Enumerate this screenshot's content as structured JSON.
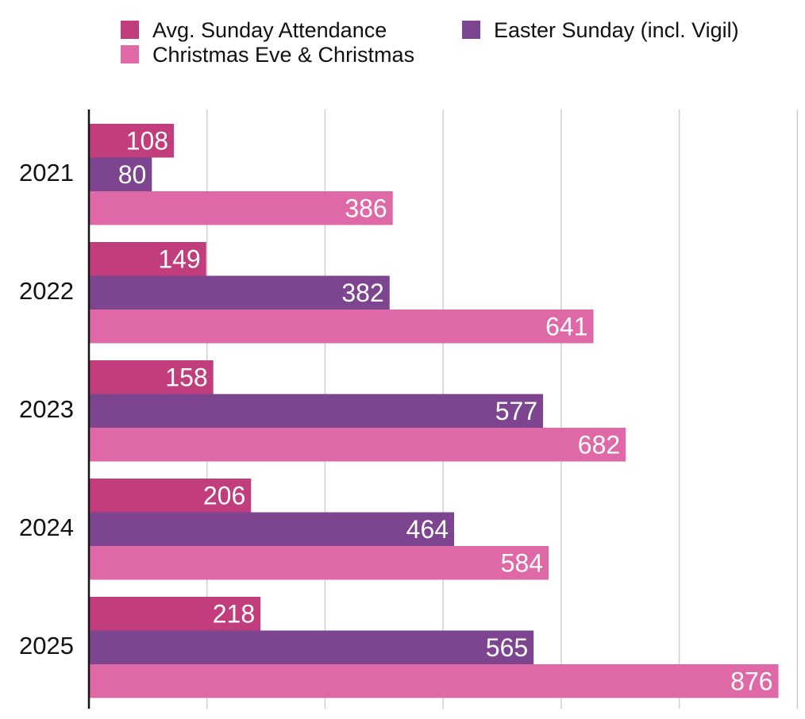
{
  "chart_data": {
    "type": "bar",
    "orientation": "horizontal",
    "title": "",
    "xlabel": "",
    "ylabel": "",
    "categories": [
      "2021",
      "2022",
      "2023",
      "2024",
      "2025"
    ],
    "series": [
      {
        "name": "Avg. Sunday Attendance",
        "color": "#c13d7b",
        "values": [
          108,
          149,
          158,
          206,
          218
        ]
      },
      {
        "name": "Easter Sunday (incl. Vigil)",
        "color": "#7d458f",
        "values": [
          80,
          382,
          577,
          464,
          565
        ]
      },
      {
        "name": "Christmas Eve & Christmas",
        "color": "#df69a6",
        "values": [
          386,
          641,
          682,
          584,
          876
        ]
      }
    ],
    "xlim": [
      0,
      900
    ],
    "x_axis_tick_labels_shown": false,
    "grid": "vertical",
    "legend_position": "top",
    "data_labels": "inside-end"
  }
}
